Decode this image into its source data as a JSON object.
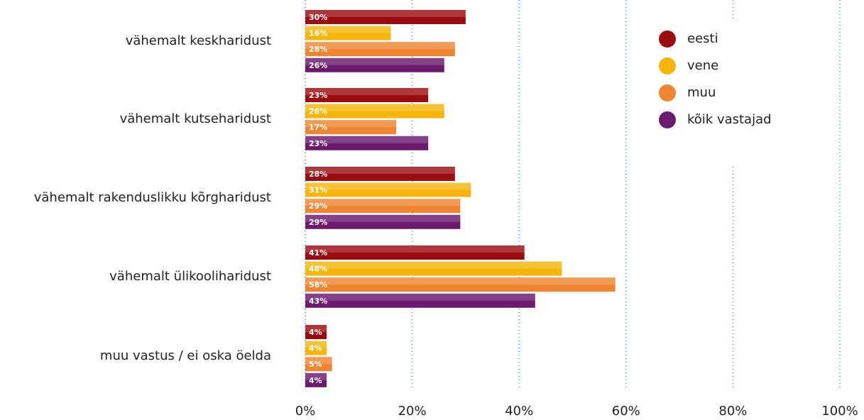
{
  "chart_data": {
    "type": "hbar",
    "categories": [
      "vähemalt keskharidust",
      "vähemalt kutseharidust",
      "vähemalt rakenduslikku kõrgharidust",
      "vähemalt ülikooliharidust",
      "muu vastus / ei oska öelda"
    ],
    "series": [
      {
        "name": "eesti",
        "color": "#9b0c10",
        "values": [
          30,
          23,
          28,
          41,
          4
        ],
        "value_labels": [
          "30%",
          "23%",
          "28%",
          "41%",
          "4%"
        ]
      },
      {
        "name": "vene",
        "color": "#f5b50a",
        "values": [
          16,
          26,
          31,
          48,
          4
        ],
        "value_labels": [
          "16%",
          "26%",
          "31%",
          "48%",
          "4%"
        ]
      },
      {
        "name": "muu",
        "color": "#ef8530",
        "values": [
          28,
          17,
          29,
          58,
          5
        ],
        "value_labels": [
          "28%",
          "17%",
          "29%",
          "58%",
          "5%"
        ]
      },
      {
        "name": "kõik vastajad",
        "color": "#6b1a6d",
        "values": [
          26,
          23,
          29,
          43,
          4
        ],
        "value_labels": [
          "26%",
          "23%",
          "29%",
          "43%",
          "4%"
        ]
      }
    ],
    "xlim": [
      0,
      100
    ],
    "xticks": [
      {
        "value": 0,
        "label": "0%"
      },
      {
        "value": 20,
        "label": "20%"
      },
      {
        "value": 40,
        "label": "40%"
      },
      {
        "value": 60,
        "label": "60%"
      },
      {
        "value": 80,
        "label": "80%"
      },
      {
        "value": 100,
        "label": "100%"
      }
    ],
    "grid": true,
    "legend": "upper right"
  }
}
